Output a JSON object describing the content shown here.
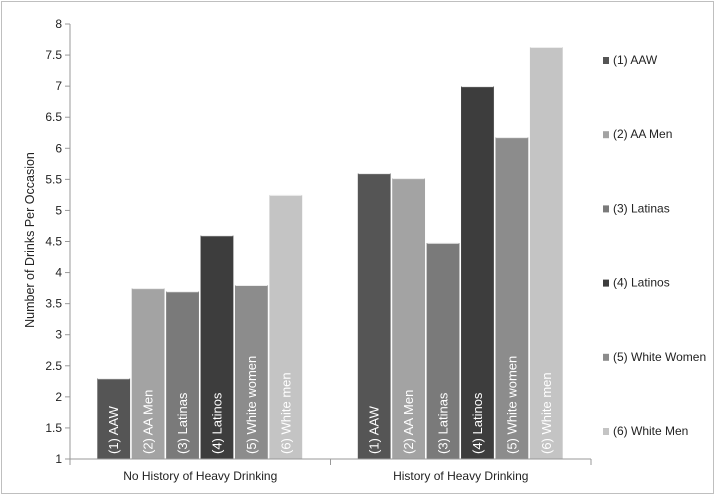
{
  "chart_data": {
    "type": "bar",
    "title": "",
    "xlabel": "",
    "ylabel": "Number of Drinks Per Occasion",
    "ylim": [
      1,
      8
    ],
    "yticks": [
      "1",
      "1.5",
      "2",
      "2.5",
      "3",
      "3.5",
      "4",
      "4.5",
      "5",
      "5.5",
      "6",
      "6.5",
      "7",
      "7.5",
      "8"
    ],
    "grid": false,
    "legend_position": "right",
    "categories": [
      "No History of Heavy Drinking",
      "History of Heavy Drinking"
    ],
    "series": [
      {
        "name": "(1) AAW",
        "bar_label": "(1) AAW",
        "color": "#555555",
        "values": [
          2.3,
          5.6
        ]
      },
      {
        "name": "(2) AA Men",
        "bar_label": "(2) AA Men",
        "color": "#a3a3a3",
        "values": [
          3.75,
          5.52
        ]
      },
      {
        "name": "(3) Latinas",
        "bar_label": "(3) Latinas",
        "color": "#7a7a7a",
        "values": [
          3.7,
          4.48
        ]
      },
      {
        "name": "(4) Latinos",
        "bar_label": "(4) Latinos",
        "color": "#3d3d3d",
        "values": [
          4.6,
          7.0
        ]
      },
      {
        "name": "(5) White Women",
        "bar_label": "(5) White women",
        "color": "#8c8c8c",
        "values": [
          3.8,
          6.18
        ]
      },
      {
        "name": "(6) White Men",
        "bar_label": "(6) White men",
        "color": "#c4c4c4",
        "values": [
          5.25,
          7.63
        ]
      }
    ]
  }
}
